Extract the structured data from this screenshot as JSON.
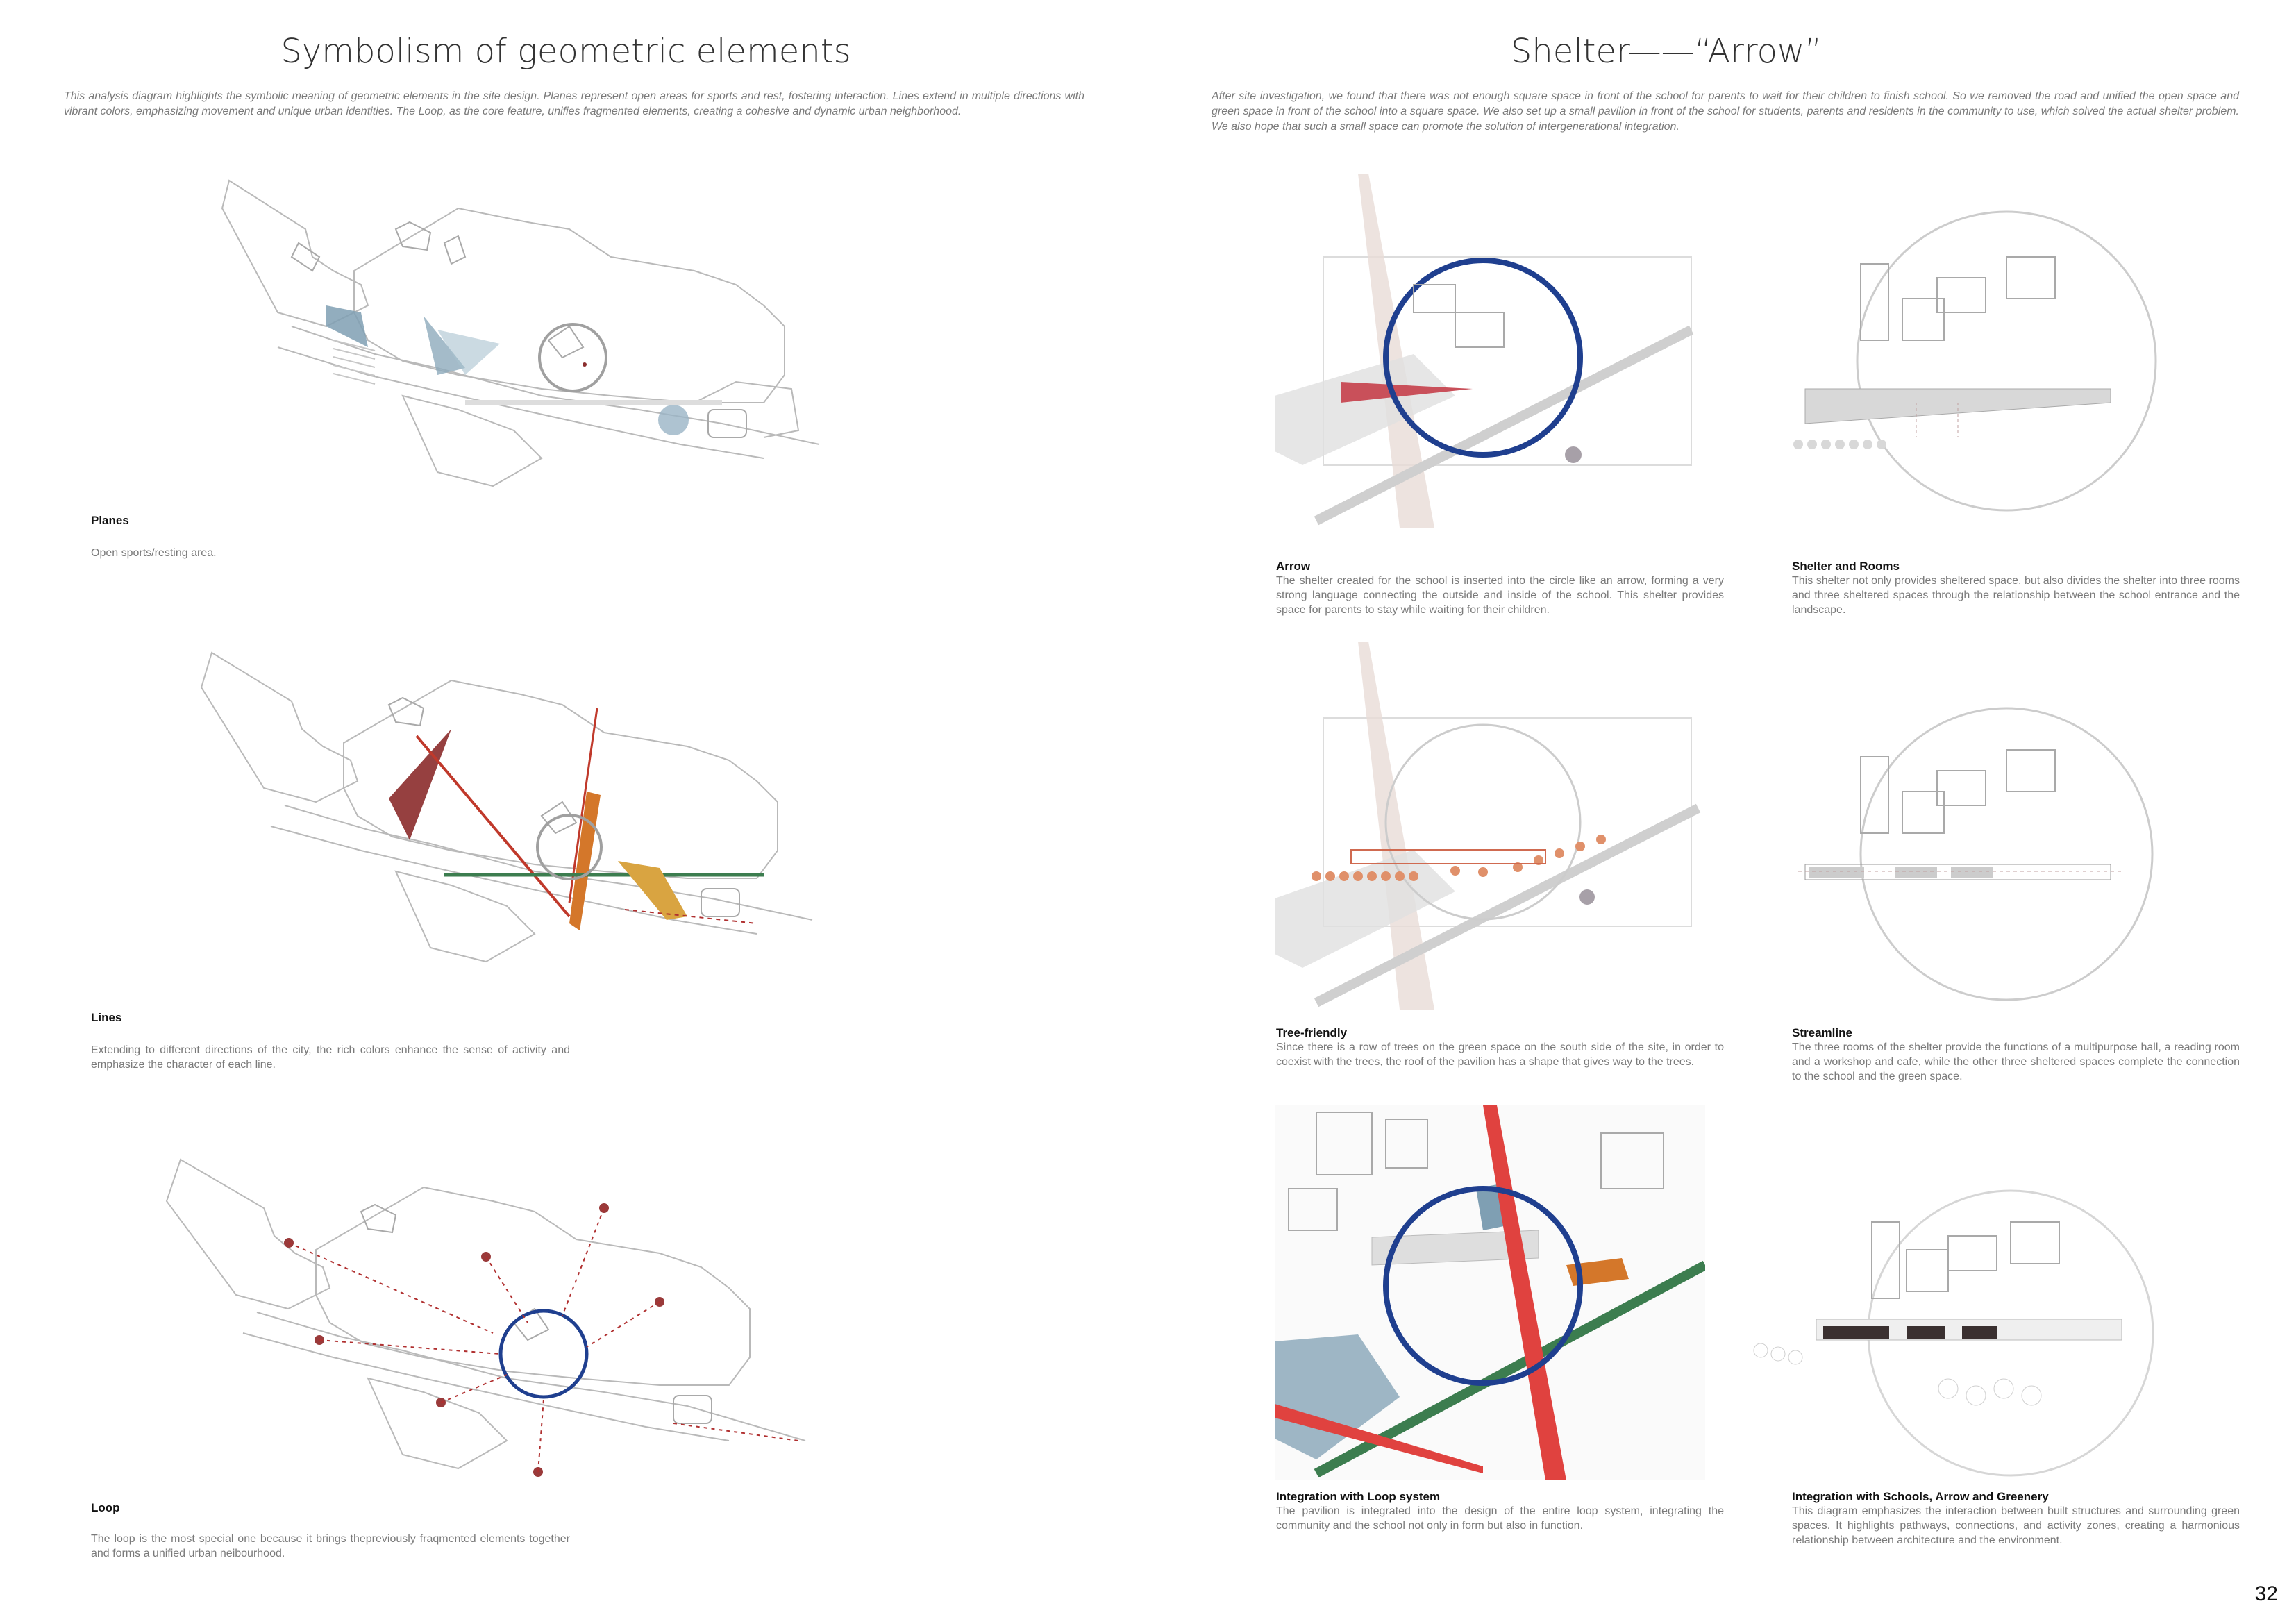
{
  "left": {
    "title": "Symbolism of geometric elements",
    "intro": "This analysis diagram highlights the symbolic meaning of geometric elements in the site design. Planes represent open areas for sports and rest, fostering interaction. Lines extend in multiple directions with vibrant colors, emphasizing movement and unique urban identities. The Loop, as the core feature, unifies fragmented elements, creating a cohesive and dynamic urban neighborhood.",
    "panels": [
      {
        "title": "Planes",
        "text": "Open sports/resting area."
      },
      {
        "title": "Lines",
        "text": "Extending to different directions of the city, the rich colors enhance the sense of activity and emphasize the character of each line."
      },
      {
        "title": "Loop",
        "text": "The loop is the most special one because it brings thepreviously fraqmented elements together and forms a unified urban neibourhood."
      }
    ]
  },
  "right": {
    "title": "Shelter——“Arrow”",
    "intro": "After site investigation, we found that there was not enough square space in front of the school for parents to wait for their children to finish school. So we removed the road and unified the open space and green space in front of the school into a square space. We also set up a small pavilion in front of the school for students, parents and residents in the community to use, which solved the actual shelter problem. We also hope that such a small space can promote the solution of intergenerational integration.",
    "panels": [
      {
        "title": "Arrow",
        "text": "The shelter created for the school is inserted into the circle like an arrow, forming a very strong language connecting the outside and inside of the school. This shelter provides space for parents to stay while waiting for their children."
      },
      {
        "title": "Shelter and Rooms",
        "text": "This shelter not only provides sheltered space, but also divides the shelter into three rooms and three sheltered spaces through the relationship between the school entrance and the landscape."
      },
      {
        "title": "Tree-friendly",
        "text": "Since there is a row of trees on the green space on the south side of the site, in order to coexist with the trees, the roof of the pavilion has a shape that gives way to the trees."
      },
      {
        "title": "Streamline",
        "text": "The three rooms of the shelter provide the functions of a multipurpose hall, a reading room and a workshop and cafe, while the other three sheltered spaces complete the connection to the school and the green space."
      },
      {
        "title": "Integration with Loop system",
        "text": "The pavilion is integrated into the design of the entire loop system, integrating the community and the school not only in form but also in function."
      },
      {
        "title": "Integration with Schools, Arrow and Greenery",
        "text": "This diagram emphasizes the interaction between built structures and surrounding green spaces. It highlights pathways, connections, and activity zones, creating a harmonious relationship between architecture and the environment."
      }
    ]
  },
  "page_number": "32",
  "colors": {
    "loop_blue": "#1f3f8f",
    "arrow_red": "#c9505a",
    "line_green": "#3c7d4f",
    "line_orange": "#d4772a",
    "line_yellow": "#d9a441",
    "plane_blue": "#7f9fb3",
    "loop_dot": "#9a3a3a"
  }
}
